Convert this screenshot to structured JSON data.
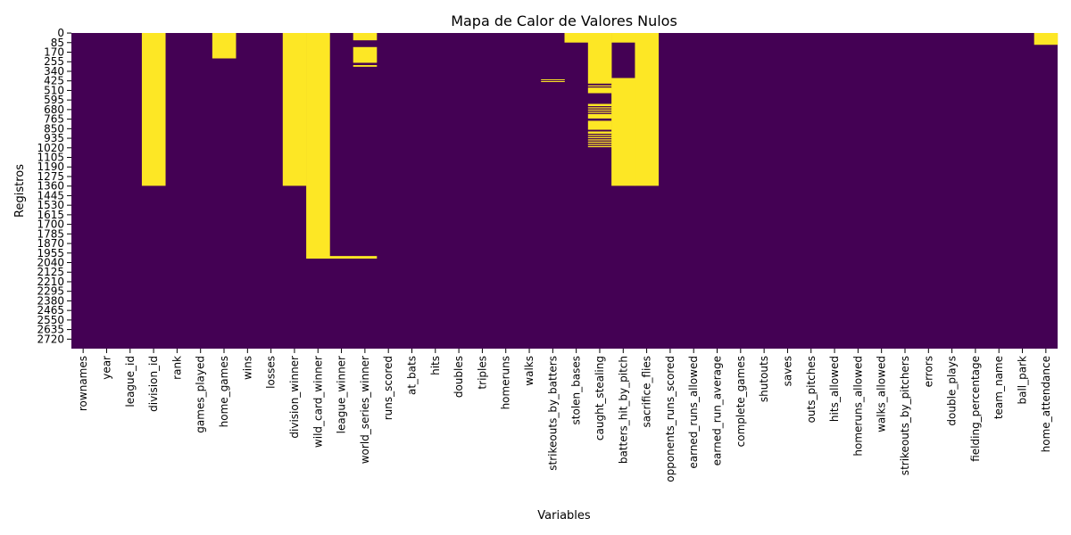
{
  "chart_data": {
    "type": "heatmap",
    "title": "Mapa de Calor de Valores Nulos",
    "xlabel": "Variables",
    "ylabel": "Registros",
    "colors": {
      "present": "#440154",
      "missing": "#fde725"
    },
    "n_rows": 2805,
    "categories": [
      "rownames",
      "year",
      "league_id",
      "division_id",
      "rank",
      "games_played",
      "home_games",
      "wins",
      "losses",
      "division_winner",
      "wild_card_winner",
      "league_winner",
      "world_series_winner",
      "runs_scored",
      "at_bats",
      "hits",
      "doubles",
      "triples",
      "homeruns",
      "walks",
      "strikeouts_by_batters",
      "stolen_bases",
      "caught_stealing",
      "batters_hit_by_pitch",
      "sacrifice_flies",
      "opponents_runs_scored",
      "earned_runs_allowed",
      "earned_run_average",
      "complete_games",
      "shutouts",
      "saves",
      "outs_pitches",
      "hits_allowed",
      "homeruns_allowed",
      "walks_allowed",
      "strikeouts_by_pitchers",
      "errors",
      "double_plays",
      "fielding_percentage",
      "team_name",
      "ball_park",
      "home_attendance"
    ],
    "y_tick_labels": [
      "0",
      "85",
      "170",
      "255",
      "340",
      "425",
      "510",
      "595",
      "680",
      "765",
      "850",
      "935",
      "1020",
      "1105",
      "1190",
      "1275",
      "1360",
      "1445",
      "1530",
      "1615",
      "1700",
      "1785",
      "1870",
      "1955",
      "2040",
      "2125",
      "2210",
      "2295",
      "2380",
      "2465",
      "2550",
      "2635",
      "2720"
    ],
    "missing_ranges": [
      {
        "column": "division_id",
        "from": 0,
        "to": 1358
      },
      {
        "column": "home_games",
        "from": 0,
        "to": 226
      },
      {
        "column": "division_winner",
        "from": 0,
        "to": 1358
      },
      {
        "column": "wild_card_winner",
        "from": 0,
        "to": 2005
      },
      {
        "column": "league_winner",
        "from": 1982,
        "to": 2005
      },
      {
        "column": "world_series_winner",
        "from": 0,
        "to": 65
      },
      {
        "column": "world_series_winner",
        "from": 125,
        "to": 265
      },
      {
        "column": "world_series_winner",
        "from": 285,
        "to": 300
      },
      {
        "column": "world_series_winner",
        "from": 1982,
        "to": 2005
      },
      {
        "column": "strikeouts_by_batters",
        "from": 412,
        "to": 420
      },
      {
        "column": "strikeouts_by_batters",
        "from": 428,
        "to": 432
      },
      {
        "column": "stolen_bases",
        "from": 0,
        "to": 85
      },
      {
        "column": "caught_stealing",
        "from": 0,
        "to": 450
      },
      {
        "column": "caught_stealing",
        "from": 465,
        "to": 475
      },
      {
        "column": "caught_stealing",
        "from": 485,
        "to": 535
      },
      {
        "column": "caught_stealing",
        "from": 630,
        "to": 650
      },
      {
        "column": "caught_stealing",
        "from": 660,
        "to": 670
      },
      {
        "column": "caught_stealing",
        "from": 680,
        "to": 690
      },
      {
        "column": "caught_stealing",
        "from": 700,
        "to": 710
      },
      {
        "column": "caught_stealing",
        "from": 720,
        "to": 760
      },
      {
        "column": "caught_stealing",
        "from": 780,
        "to": 860
      },
      {
        "column": "caught_stealing",
        "from": 875,
        "to": 895
      },
      {
        "column": "caught_stealing",
        "from": 905,
        "to": 915
      },
      {
        "column": "caught_stealing",
        "from": 925,
        "to": 935
      },
      {
        "column": "caught_stealing",
        "from": 945,
        "to": 955
      },
      {
        "column": "caught_stealing",
        "from": 965,
        "to": 975
      },
      {
        "column": "caught_stealing",
        "from": 985,
        "to": 995
      },
      {
        "column": "caught_stealing",
        "from": 1005,
        "to": 1015
      },
      {
        "column": "batters_hit_by_pitch",
        "from": 0,
        "to": 85
      },
      {
        "column": "batters_hit_by_pitch",
        "from": 400,
        "to": 1358
      },
      {
        "column": "sacrifice_flies",
        "from": 0,
        "to": 1358
      },
      {
        "column": "home_attendance",
        "from": 0,
        "to": 105
      }
    ]
  }
}
